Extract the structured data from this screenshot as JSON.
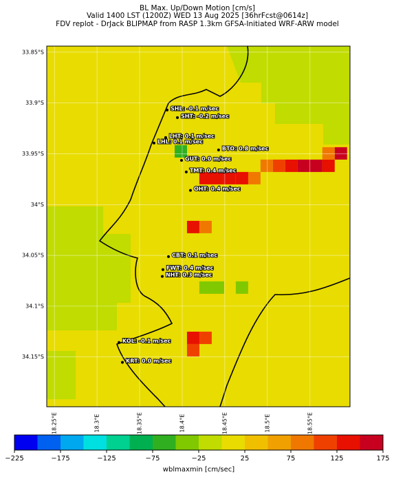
{
  "chart_data": {
    "type": "map",
    "title": [
      "BL Max. Up/Down Motion [cm/s]",
      "Valid 1400 LST (1200Z) WED 13 Aug 2025 [36hrFcst@0614z]",
      "FDV replot - DrJack BLIPMAP from RASP 1.3km GFSA-Initiated WRF-ARW model"
    ],
    "xlim": [
      18.241,
      18.597
    ],
    "ylim": [
      33.844,
      34.199
    ],
    "xticks": [
      {
        "value": 18.25,
        "label": "18.25°E"
      },
      {
        "value": 18.3,
        "label": "18.3°E"
      },
      {
        "value": 18.35,
        "label": "18.35°E"
      },
      {
        "value": 18.4,
        "label": "18.4°E"
      },
      {
        "value": 18.45,
        "label": "18.45°E"
      },
      {
        "value": 18.5,
        "label": "18.5°E"
      },
      {
        "value": 18.55,
        "label": "18.55°E"
      }
    ],
    "yticks": [
      {
        "value": 33.85,
        "label": "33.85°S"
      },
      {
        "value": 33.9,
        "label": "33.9°S"
      },
      {
        "value": 33.95,
        "label": "33.95°S"
      },
      {
        "value": 34,
        "label": "34°S"
      },
      {
        "value": 34.05,
        "label": "34.05°S"
      },
      {
        "value": 34.1,
        "label": "34.1°S"
      },
      {
        "value": 34.15,
        "label": "34.15°S"
      }
    ],
    "cells": [
      {
        "lon": 18.5282,
        "lat": 33.9618,
        "value": 125
      },
      {
        "lon": 18.5427,
        "lat": 33.9618,
        "value": 150
      },
      {
        "lon": 18.5573,
        "lat": 33.9618,
        "value": 150
      },
      {
        "lon": 18.5718,
        "lat": 33.9618,
        "value": 125
      },
      {
        "lon": 18.5137,
        "lat": 33.9618,
        "value": 100
      },
      {
        "lon": 18.4992,
        "lat": 33.9618,
        "value": 75
      },
      {
        "lon": 18.5863,
        "lat": 33.9496,
        "value": 160
      },
      {
        "lon": 18.5718,
        "lat": 33.9496,
        "value": 75
      },
      {
        "lon": 18.4847,
        "lat": 33.974,
        "value": 75
      },
      {
        "lon": 18.4702,
        "lat": 33.974,
        "value": 125
      },
      {
        "lon": 18.4556,
        "lat": 33.974,
        "value": 125
      },
      {
        "lon": 18.4411,
        "lat": 33.974,
        "value": 125
      },
      {
        "lon": 18.4274,
        "lat": 33.974,
        "value": 125
      },
      {
        "lon": 18.4129,
        "lat": 34.0221,
        "value": 140
      },
      {
        "lon": 18.4274,
        "lat": 34.0221,
        "value": 75
      },
      {
        "lon": 18.4129,
        "lat": 34.1312,
        "value": 125
      },
      {
        "lon": 18.4129,
        "lat": 34.1434,
        "value": 110
      },
      {
        "lon": 18.4274,
        "lat": 34.1312,
        "value": 100
      },
      {
        "lon": 18.3984,
        "lat": 33.9476,
        "value": -60
      },
      {
        "lon": 18.4274,
        "lat": 34.0817,
        "value": -50
      },
      {
        "lon": 18.4419,
        "lat": 34.0817,
        "value": -50
      },
      {
        "lon": 18.4702,
        "lat": 34.0817,
        "value": -40
      }
    ],
    "stations": [
      {
        "label": "SHL: -0.1 m/sec",
        "lon": 18.3823,
        "lat": 33.9069
      },
      {
        "label": "SHT: -0.2 m/sec",
        "lon": 18.3944,
        "lat": 33.9144
      },
      {
        "label": "LHT: 0.1 m/sec",
        "lon": 18.3806,
        "lat": 33.934
      },
      {
        "label": "LHL: 0.1 m/sec",
        "lon": 18.3669,
        "lat": 33.9394
      },
      {
        "label": "BTO: 0.8 m/sec",
        "lon": 18.4427,
        "lat": 33.9462
      },
      {
        "label": "GUT: 0.0 m/sec",
        "lon": 18.3992,
        "lat": 33.9565
      },
      {
        "label": "TMT: 0.4 m/sec",
        "lon": 18.4048,
        "lat": 33.9679
      },
      {
        "label": "OHT: 0.4 m/sec",
        "lon": 18.4097,
        "lat": 33.986
      },
      {
        "label": "CBT: 0.1 m/sec",
        "lon": 18.3839,
        "lat": 34.0512
      },
      {
        "label": "FWT: 0.4 m/sec",
        "lon": 18.3774,
        "lat": 34.064
      },
      {
        "label": "NHT: 0.3 m/sec",
        "lon": 18.3766,
        "lat": 34.0707
      },
      {
        "label": "KOL: -0.1 m/sec",
        "lon": 18.3258,
        "lat": 34.1357
      },
      {
        "label": "KRT: 0.0 m/sec",
        "lon": 18.3298,
        "lat": 34.1553
      }
    ],
    "colorbar": {
      "label": "wblmaxmin [cm/sec]",
      "bounds": [
        -225,
        -200,
        -175,
        -150,
        -125,
        -100,
        -75,
        -50,
        -25,
        0,
        25,
        50,
        75,
        100,
        125,
        150,
        175
      ],
      "colors": [
        "#0000f0",
        "#0060f0",
        "#00a8f0",
        "#00e0e0",
        "#00d090",
        "#00b050",
        "#30b020",
        "#80c800",
        "#c0dc00",
        "#e8dc00",
        "#f0c000",
        "#f0a000",
        "#f07800",
        "#f04000",
        "#e81000",
        "#c80020"
      ],
      "ticks": [
        {
          "value": -225,
          "label": "−225"
        },
        {
          "value": -175,
          "label": "−175"
        },
        {
          "value": -125,
          "label": "−125"
        },
        {
          "value": -75,
          "label": "−75"
        },
        {
          "value": -25,
          "label": "−25"
        },
        25,
        75,
        125,
        175
      ]
    }
  }
}
